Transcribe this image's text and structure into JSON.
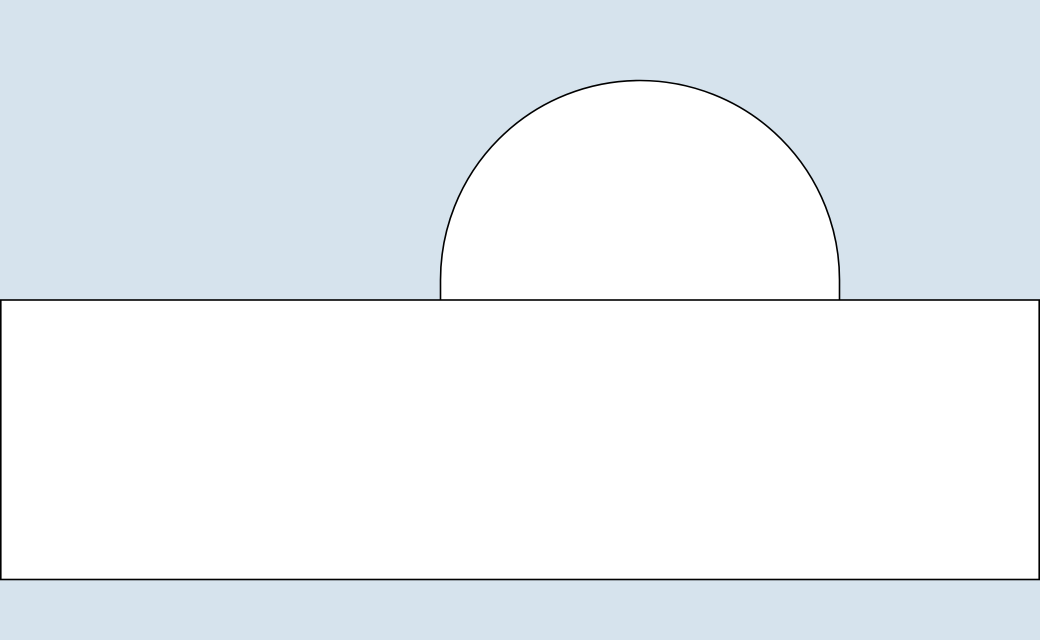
{
  "colors": {
    "background": "#d6e3ed",
    "shape_fill": "#ffffff",
    "shape_stroke": "#000000"
  },
  "shapes": [
    {
      "kind": "half-circle"
    },
    {
      "kind": "rectangle"
    }
  ]
}
